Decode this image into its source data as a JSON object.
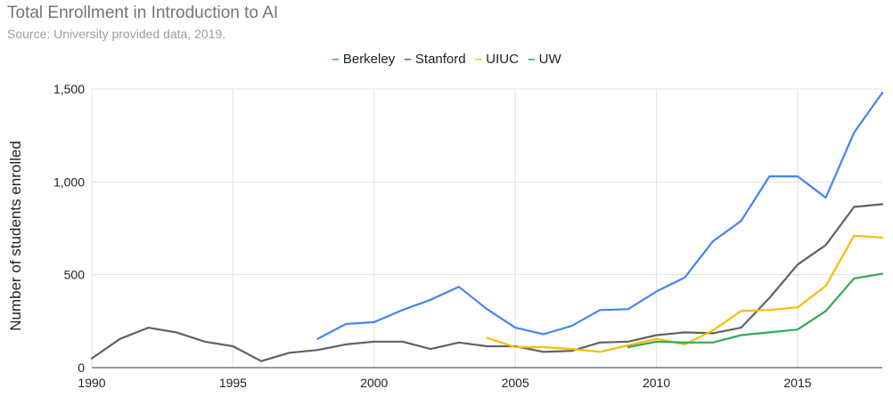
{
  "chart_data": {
    "type": "line",
    "title": "Total Enrollment in Introduction to AI",
    "subtitle": "Source: University provided data, 2019.",
    "xlabel": "",
    "ylabel": "Number of students enrolled",
    "xlim": [
      1990,
      2018
    ],
    "ylim": [
      0,
      1500
    ],
    "xticks": [
      1990,
      1995,
      2000,
      2005,
      2010,
      2015
    ],
    "yticks": [
      0,
      500,
      1000,
      1500
    ],
    "ytick_labels": [
      "0",
      "500",
      "1,000",
      "1,500"
    ],
    "grid": true,
    "legend_position": "top",
    "series": [
      {
        "name": "Berkeley",
        "color": "#4285f4",
        "x": [
          1998,
          1999,
          2000,
          2001,
          2002,
          2003,
          2004,
          2005,
          2006,
          2007,
          2008,
          2009,
          2010,
          2011,
          2012,
          2013,
          2014,
          2015,
          2016,
          2017,
          2018
        ],
        "y": [
          155,
          235,
          245,
          310,
          365,
          435,
          315,
          215,
          180,
          225,
          310,
          315,
          410,
          485,
          680,
          790,
          1030,
          1030,
          915,
          1265,
          1480
        ]
      },
      {
        "name": "Stanford",
        "color": "#616161",
        "x": [
          1990,
          1991,
          1992,
          1993,
          1994,
          1995,
          1996,
          1997,
          1998,
          1999,
          2000,
          2001,
          2002,
          2003,
          2004,
          2005,
          2006,
          2007,
          2008,
          2009,
          2010,
          2011,
          2012,
          2013,
          2014,
          2015,
          2016,
          2017,
          2018
        ],
        "y": [
          50,
          155,
          215,
          190,
          140,
          115,
          35,
          80,
          95,
          125,
          140,
          140,
          100,
          135,
          115,
          115,
          85,
          90,
          135,
          140,
          175,
          190,
          185,
          215,
          375,
          555,
          660,
          865,
          880
        ]
      },
      {
        "name": "UIUC",
        "color": "#fbbc04",
        "x": [
          2004,
          2005,
          2006,
          2007,
          2008,
          2009,
          2010,
          2011,
          2012,
          2013,
          2014,
          2015,
          2016,
          2017,
          2018
        ],
        "y": [
          160,
          110,
          110,
          100,
          85,
          120,
          155,
          125,
          200,
          305,
          310,
          325,
          440,
          710,
          700
        ]
      },
      {
        "name": "UW",
        "color": "#34a853",
        "x": [
          2009,
          2010,
          2011,
          2012,
          2013,
          2014,
          2015,
          2016,
          2017,
          2018
        ],
        "y": [
          110,
          140,
          135,
          135,
          175,
          190,
          205,
          305,
          480,
          505
        ]
      }
    ]
  }
}
